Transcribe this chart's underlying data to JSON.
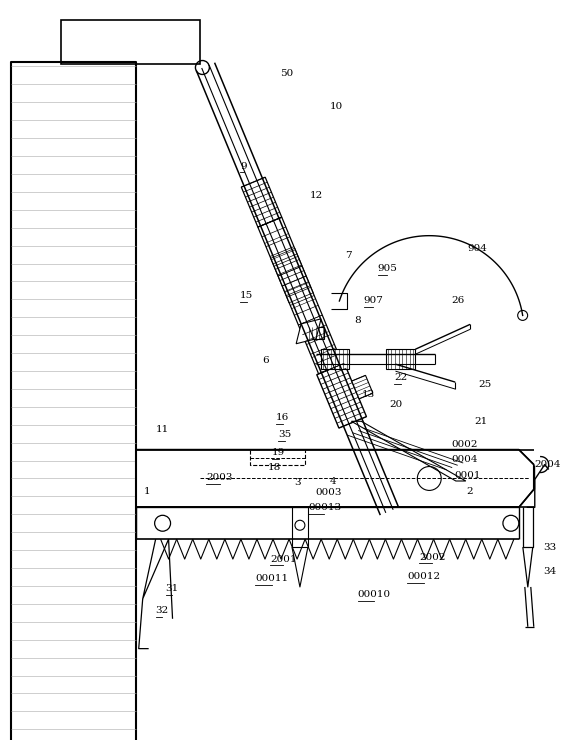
{
  "bg_color": "#ffffff",
  "line_color": "#000000",
  "fig_width": 5.69,
  "fig_height": 7.42,
  "dpi": 100
}
